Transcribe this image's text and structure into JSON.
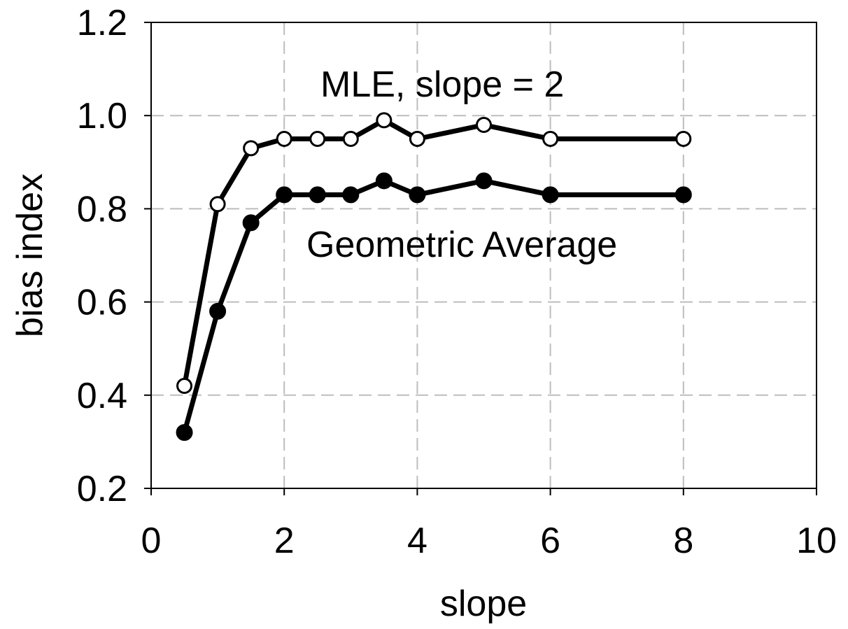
{
  "chart_data": {
    "type": "line",
    "xlabel": "slope",
    "ylabel": "bias index",
    "xlim": [
      0,
      10
    ],
    "ylim": [
      0.2,
      1.2
    ],
    "xticks": [
      0,
      2,
      4,
      6,
      8,
      10
    ],
    "yticks": [
      0.2,
      0.4,
      0.6,
      0.8,
      1.0,
      1.2
    ],
    "xtick_labels": [
      "0",
      "2",
      "4",
      "6",
      "8",
      "10"
    ],
    "ytick_labels": [
      "0.2",
      "0.4",
      "0.6",
      "0.8",
      "1.0",
      "1.2"
    ],
    "grid": true,
    "series": [
      {
        "name": "MLE, slope = 2",
        "marker": "open-circle",
        "color": "#000000",
        "x": [
          0.5,
          1,
          1.5,
          2,
          2.5,
          3,
          3.5,
          4,
          5,
          6,
          8
        ],
        "y": [
          0.42,
          0.81,
          0.93,
          0.95,
          0.95,
          0.95,
          0.99,
          0.95,
          0.98,
          0.95,
          0.95
        ]
      },
      {
        "name": "Geometric Average",
        "marker": "filled-circle",
        "color": "#000000",
        "x": [
          0.5,
          1,
          1.5,
          2,
          2.5,
          3,
          3.5,
          4,
          5,
          6,
          8
        ],
        "y": [
          0.32,
          0.58,
          0.77,
          0.83,
          0.83,
          0.83,
          0.86,
          0.83,
          0.86,
          0.83,
          0.83
        ]
      }
    ]
  }
}
